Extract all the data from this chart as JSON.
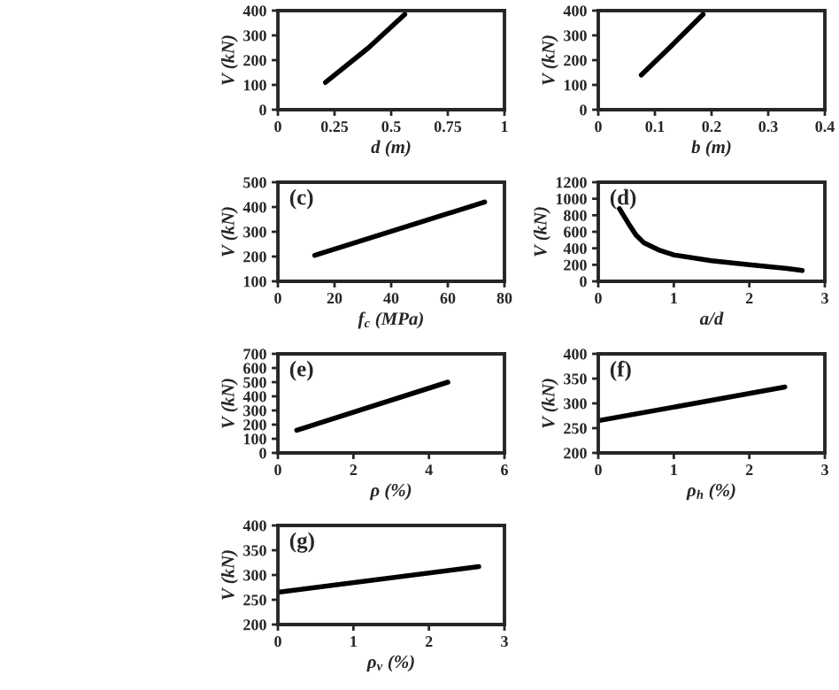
{
  "chart_data": [
    {
      "type": "line",
      "xlabel": "d (m)",
      "ylabel": "V (kN)",
      "xlim": [
        0,
        1
      ],
      "ylim": [
        0,
        400
      ],
      "xticks": [
        0,
        0.25,
        0.5,
        0.75,
        1
      ],
      "yticks": [
        0,
        100,
        200,
        300,
        400
      ],
      "series": [
        {
          "color": "#000000",
          "x": [
            0.21,
            0.4,
            0.56
          ],
          "values": [
            110,
            250,
            385
          ]
        }
      ]
    },
    {
      "type": "line",
      "xlabel": "b (m)",
      "ylabel": "V (kN)",
      "xlim": [
        0,
        0.4
      ],
      "ylim": [
        0,
        400
      ],
      "xticks": [
        0,
        0.1,
        0.2,
        0.3,
        0.4
      ],
      "yticks": [
        0,
        100,
        200,
        300,
        400
      ],
      "series": [
        {
          "color": "#000000",
          "x": [
            0.076,
            0.13,
            0.185
          ],
          "values": [
            140,
            260,
            385
          ]
        }
      ]
    },
    {
      "type": "line",
      "xlabel": "f$_{c}$ (MPa)",
      "ylabel": "V (kN)",
      "xlim": [
        0,
        80
      ],
      "ylim": [
        100,
        500
      ],
      "xticks": [
        0,
        20,
        40,
        60,
        80
      ],
      "yticks": [
        100,
        200,
        300,
        400,
        500
      ],
      "annotations": [
        "(c)"
      ],
      "series": [
        {
          "color": "#000000",
          "x": [
            13,
            73
          ],
          "values": [
            205,
            420
          ]
        }
      ]
    },
    {
      "type": "line",
      "xlabel": "a/d",
      "ylabel": "V (kN)",
      "xlim": [
        0,
        3
      ],
      "ylim": [
        0,
        1200
      ],
      "xticks": [
        0,
        1,
        2,
        3
      ],
      "yticks": [
        0,
        200,
        400,
        600,
        800,
        1000,
        1200
      ],
      "annotations": [
        "(d)"
      ],
      "series": [
        {
          "color": "#000000",
          "x": [
            0.28,
            0.4,
            0.5,
            0.6,
            0.8,
            1.0,
            1.5,
            2.0,
            2.5,
            2.7
          ],
          "values": [
            880,
            700,
            560,
            470,
            380,
            320,
            250,
            200,
            155,
            130
          ]
        }
      ]
    },
    {
      "type": "line",
      "xlabel": "ρ (%)",
      "ylabel": "V (kN)",
      "xlim": [
        0,
        6
      ],
      "ylim": [
        0,
        700
      ],
      "xticks": [
        0,
        2,
        4,
        6
      ],
      "yticks": [
        0,
        100,
        200,
        300,
        400,
        500,
        600,
        700
      ],
      "annotations": [
        "(e)"
      ],
      "series": [
        {
          "color": "#000000",
          "x": [
            0.5,
            4.5
          ],
          "values": [
            160,
            500
          ]
        }
      ]
    },
    {
      "type": "line",
      "xlabel": "ρ$_{h}$ (%)",
      "ylabel": "V (kN)",
      "xlim": [
        0,
        3
      ],
      "ylim": [
        200,
        400
      ],
      "xticks": [
        0,
        1,
        2,
        3
      ],
      "yticks": [
        200,
        250,
        300,
        350,
        400
      ],
      "annotations": [
        "(f)"
      ],
      "series": [
        {
          "color": "#000000",
          "x": [
            0,
            2.47
          ],
          "values": [
            265,
            333
          ]
        }
      ]
    },
    {
      "type": "line",
      "xlabel": "ρ$_{v}$ (%)",
      "ylabel": "V (kN)",
      "xlim": [
        0,
        3
      ],
      "ylim": [
        200,
        400
      ],
      "xticks": [
        0,
        1,
        2,
        3
      ],
      "yticks": [
        200,
        250,
        300,
        350,
        400
      ],
      "annotations": [
        "(g)"
      ],
      "series": [
        {
          "color": "#000000",
          "x": [
            0,
            2.66
          ],
          "values": [
            265,
            317
          ]
        }
      ]
    }
  ]
}
